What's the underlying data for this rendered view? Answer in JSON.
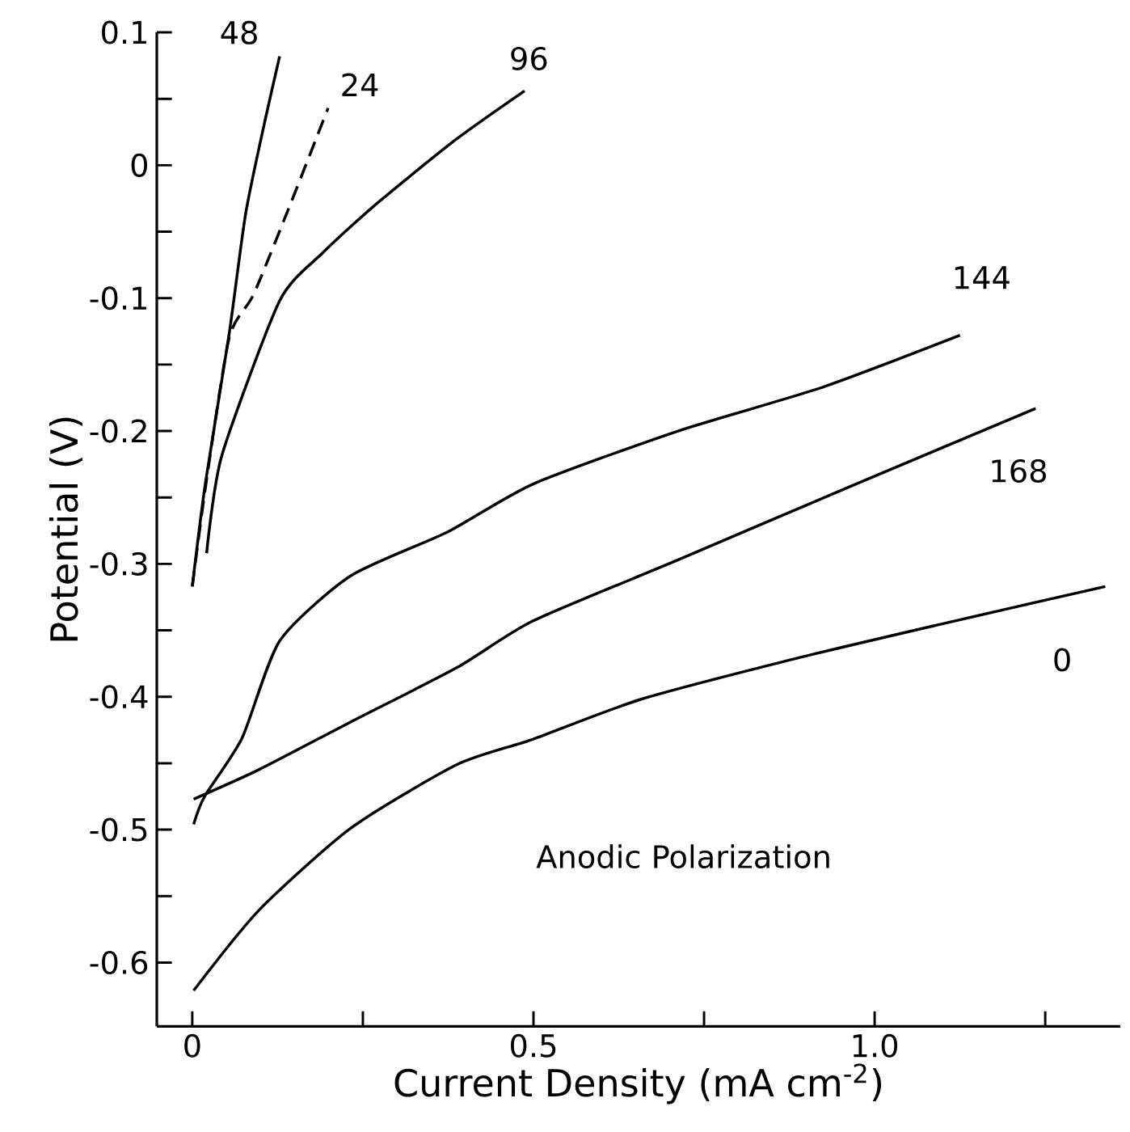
{
  "chart_data": {
    "type": "line",
    "xlabel": "Current Density (mA cm$^{-2}$)",
    "ylabel": "Potential (V)",
    "xlim": [
      -0.052,
      1.36
    ],
    "ylim": [
      -0.648,
      0.1
    ],
    "xticks": [
      0,
      {
        "value": 0.25,
        "label": null
      },
      {
        "value": 0.5,
        "label": "0.5"
      },
      {
        "value": 0.75,
        "label": null
      },
      {
        "value": 1,
        "label": "1.0"
      },
      {
        "value": 1.25,
        "label": null
      }
    ],
    "yticks": [
      -0.6,
      {
        "value": -0.55,
        "label": null
      },
      -0.5,
      {
        "value": -0.45,
        "label": null
      },
      -0.4,
      {
        "value": -0.35,
        "label": null
      },
      -0.3,
      {
        "value": -0.25,
        "label": null
      },
      -0.2,
      {
        "value": -0.15,
        "label": null
      },
      -0.1,
      {
        "value": -0.05,
        "label": null
      },
      0,
      {
        "value": 0.05,
        "label": null
      },
      0.1
    ],
    "annotations": [
      "Anodic Polarization"
    ],
    "series": [
      {
        "name": "48",
        "color": "#000000",
        "line_style": "solid",
        "x": [
          0.0,
          0.019,
          0.054,
          0.078,
          0.105,
          0.128
        ],
        "values": [
          -0.317,
          -0.24,
          -0.127,
          -0.037,
          0.03,
          0.082
        ]
      },
      {
        "name": "24",
        "color": "#000000",
        "line_style": "dashed",
        "x": [
          0.0,
          0.02,
          0.054,
          0.09,
          0.144,
          0.199
        ],
        "values": [
          -0.317,
          -0.24,
          -0.13,
          -0.097,
          -0.029,
          0.043
        ]
      },
      {
        "name": "96",
        "color": "#000000",
        "line_style": "solid",
        "x": [
          0.021,
          0.043,
          0.128,
          0.191,
          0.27,
          0.388,
          0.487
        ],
        "values": [
          -0.292,
          -0.219,
          -0.102,
          -0.066,
          -0.029,
          0.02,
          0.056
        ]
      },
      {
        "name": "144",
        "color": "#000000",
        "line_style": "solid",
        "x": [
          0.002,
          0.018,
          0.073,
          0.128,
          0.232,
          0.374,
          0.499,
          0.712,
          0.924,
          1.125
        ],
        "values": [
          -0.496,
          -0.475,
          -0.431,
          -0.358,
          -0.309,
          -0.276,
          -0.24,
          -0.2,
          -0.167,
          -0.128
        ]
      },
      {
        "name": "168",
        "color": "#000000",
        "line_style": "solid",
        "x": [
          0.002,
          0.097,
          0.232,
          0.388,
          0.499,
          0.712,
          0.972,
          1.236
        ],
        "values": [
          -0.477,
          -0.455,
          -0.419,
          -0.378,
          -0.343,
          -0.297,
          -0.24,
          -0.183
        ]
      },
      {
        "name": "0",
        "color": "#000000",
        "line_style": "solid",
        "x": [
          0.002,
          0.097,
          0.232,
          0.388,
          0.499,
          0.657,
          0.894,
          1.1,
          1.338
        ],
        "values": [
          -0.621,
          -0.561,
          -0.499,
          -0.451,
          -0.432,
          -0.402,
          -0.37,
          -0.345,
          -0.317
        ]
      }
    ]
  }
}
